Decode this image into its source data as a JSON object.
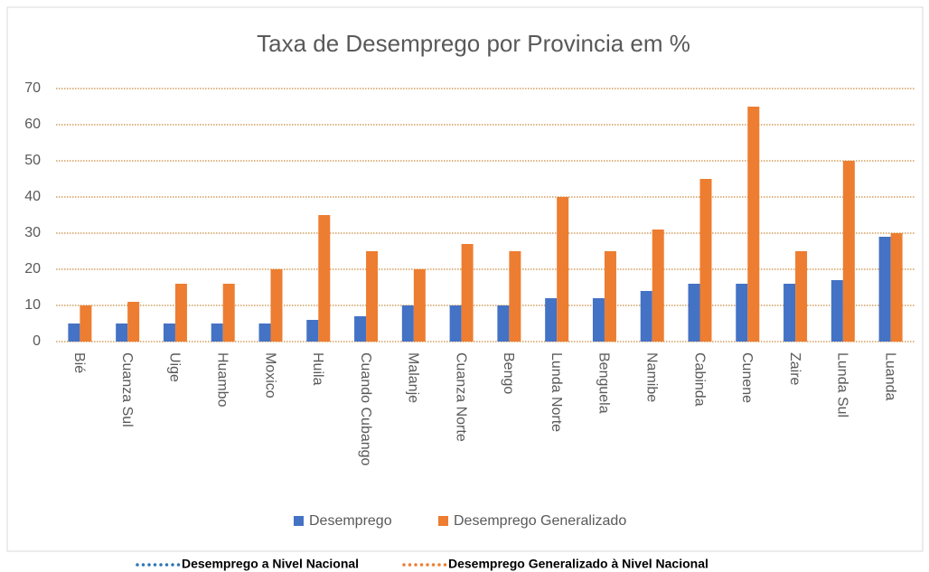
{
  "chart_data": {
    "type": "bar",
    "title": "Taxa de Desemprego por Provincia em %",
    "categories": [
      "Bié",
      "Cuanza Sul",
      "Uige",
      "Huambo",
      "Moxico",
      "Huila",
      "Cuando Cubango",
      "Malanje",
      "Cuanza Norte",
      "Bengo",
      "Lunda Norte",
      "Benguela",
      "Namibe",
      "Cabinda",
      "Cunene",
      "Zaire",
      "Lunda Sul",
      "Luanda"
    ],
    "series": [
      {
        "name": "Desemprego",
        "color": "#4472c4",
        "values": [
          5,
          5,
          5,
          5,
          5,
          6,
          7,
          10,
          10,
          10,
          12,
          12,
          14,
          16,
          16,
          16,
          17,
          29
        ]
      },
      {
        "name": "Desemprego Generalizado",
        "color": "#ed7d31",
        "values": [
          10,
          11,
          16,
          16,
          20,
          35,
          25,
          20,
          27,
          25,
          40,
          25,
          31,
          45,
          65,
          25,
          50,
          30
        ]
      }
    ],
    "ylim": [
      0,
      70
    ],
    "yticks": [
      0,
      10,
      20,
      30,
      40,
      50,
      60,
      70
    ],
    "grid": true,
    "grid_color": "#c98a3a",
    "legend": "bottom",
    "reference_legend": [
      {
        "name": "Desemprego a Nivel Nacional",
        "color": "#2e75b6"
      },
      {
        "name": "Desemprego Generalizado à Nivel Nacional",
        "color": "#ed7d31"
      }
    ]
  }
}
